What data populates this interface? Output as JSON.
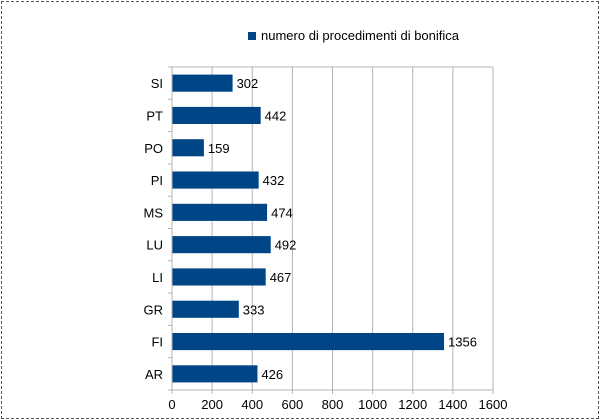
{
  "chart_data": {
    "type": "bar",
    "orientation": "horizontal",
    "categories": [
      "AR",
      "FI",
      "GR",
      "LI",
      "LU",
      "MS",
      "PI",
      "PO",
      "PT",
      "SI"
    ],
    "series": [
      {
        "name": "numero di procedimenti di bonifica",
        "values": [
          426,
          1356,
          333,
          467,
          492,
          474,
          432,
          159,
          442,
          302
        ],
        "color": "#004586"
      }
    ],
    "xlim": [
      0,
      1600
    ],
    "xticks": [
      0,
      200,
      400,
      600,
      800,
      1000,
      1200,
      1400,
      1600
    ],
    "grid": "vertical",
    "legend": "top",
    "data_labels": true
  }
}
